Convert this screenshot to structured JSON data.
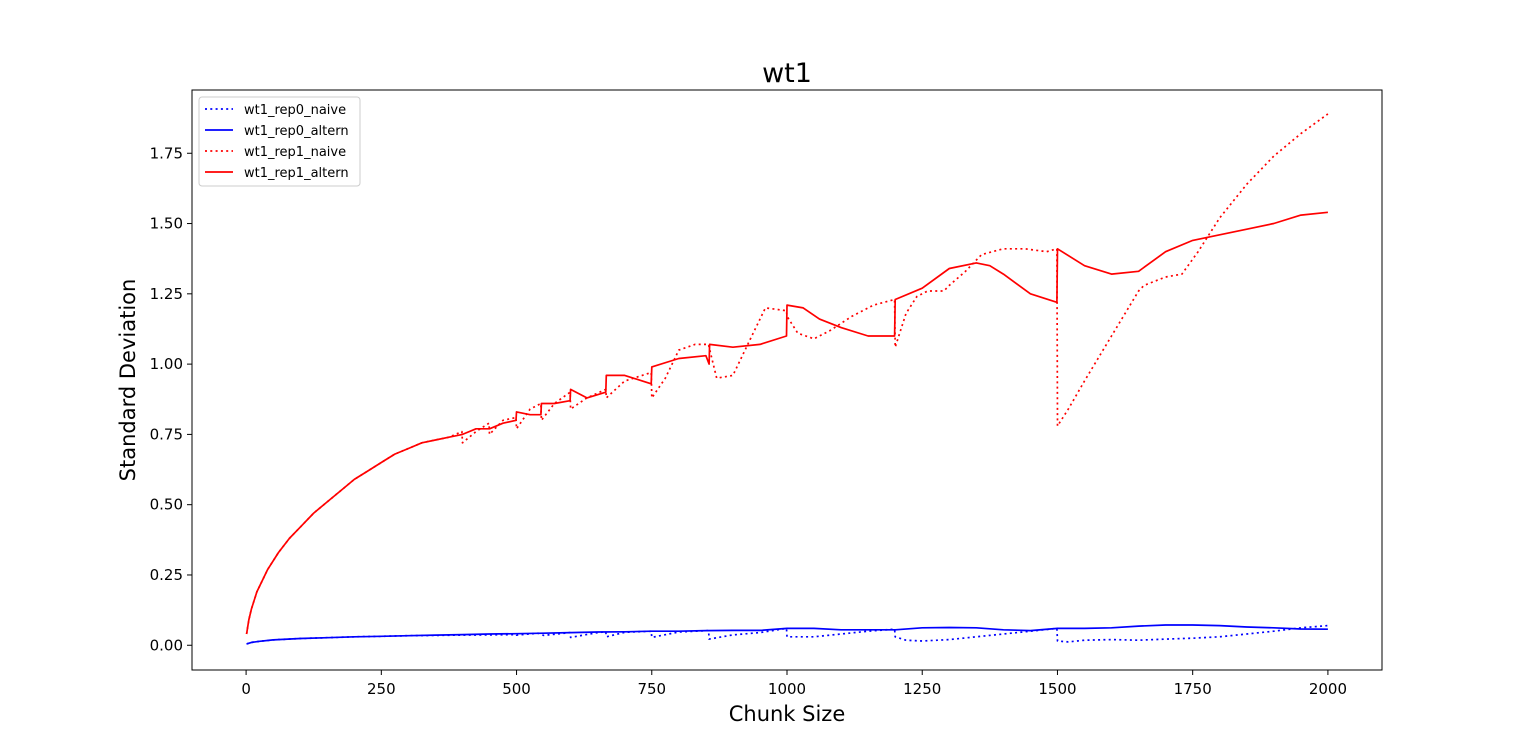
{
  "chart_data": {
    "type": "line",
    "title": "wt1",
    "xlabel": "Chunk Size",
    "ylabel": "Standard Deviation",
    "xlim": [
      -100,
      2100
    ],
    "ylim": [
      -0.088,
      1.975
    ],
    "xticks": [
      0,
      250,
      500,
      750,
      1000,
      1250,
      1500,
      1750,
      2000
    ],
    "xtick_labels": [
      "0",
      "250",
      "500",
      "750",
      "1000",
      "1250",
      "1500",
      "1750",
      "2000"
    ],
    "yticks": [
      0.0,
      0.25,
      0.5,
      0.75,
      1.0,
      1.25,
      1.5,
      1.75
    ],
    "ytick_labels": [
      "0.00",
      "0.25",
      "0.50",
      "0.75",
      "1.00",
      "1.25",
      "1.50",
      "1.75"
    ],
    "legend_position": "top-left",
    "series": [
      {
        "name": "wt1_rep0_naive",
        "color": "#0000ff",
        "style": "dotted",
        "x": [
          1,
          10,
          25,
          50,
          100,
          150,
          200,
          250,
          300,
          350,
          400,
          450,
          499,
          500,
          540,
          550,
          599,
          600,
          650,
          665,
          666,
          700,
          749,
          750,
          800,
          855,
          856,
          900,
          950,
          999,
          1000,
          1050,
          1100,
          1150,
          1199,
          1200,
          1220,
          1250,
          1300,
          1350,
          1400,
          1450,
          1499,
          1500,
          1520,
          1550,
          1600,
          1650,
          1700,
          1750,
          1800,
          1850,
          1900,
          1950,
          2000
        ],
        "values": [
          0.005,
          0.01,
          0.014,
          0.019,
          0.024,
          0.027,
          0.03,
          0.032,
          0.034,
          0.035,
          0.036,
          0.037,
          0.038,
          0.036,
          0.043,
          0.035,
          0.045,
          0.028,
          0.045,
          0.048,
          0.03,
          0.046,
          0.05,
          0.028,
          0.047,
          0.052,
          0.022,
          0.037,
          0.045,
          0.06,
          0.03,
          0.03,
          0.04,
          0.05,
          0.057,
          0.03,
          0.018,
          0.015,
          0.02,
          0.03,
          0.04,
          0.05,
          0.06,
          0.015,
          0.012,
          0.018,
          0.02,
          0.018,
          0.022,
          0.025,
          0.03,
          0.04,
          0.05,
          0.062,
          0.07
        ]
      },
      {
        "name": "wt1_rep0_altern",
        "color": "#0000ff",
        "style": "solid",
        "x": [
          1,
          10,
          25,
          50,
          100,
          150,
          200,
          250,
          300,
          350,
          400,
          450,
          500,
          550,
          600,
          650,
          700,
          750,
          800,
          850,
          900,
          950,
          1000,
          1050,
          1100,
          1150,
          1200,
          1250,
          1300,
          1350,
          1400,
          1450,
          1500,
          1550,
          1600,
          1650,
          1700,
          1750,
          1800,
          1850,
          1900,
          1950,
          2000
        ],
        "values": [
          0.005,
          0.01,
          0.014,
          0.019,
          0.024,
          0.027,
          0.03,
          0.032,
          0.034,
          0.036,
          0.038,
          0.04,
          0.041,
          0.043,
          0.045,
          0.047,
          0.048,
          0.05,
          0.05,
          0.052,
          0.053,
          0.053,
          0.06,
          0.06,
          0.055,
          0.055,
          0.055,
          0.062,
          0.063,
          0.062,
          0.055,
          0.052,
          0.06,
          0.06,
          0.062,
          0.068,
          0.072,
          0.072,
          0.07,
          0.065,
          0.062,
          0.058,
          0.057
        ]
      },
      {
        "name": "wt1_rep1_naive",
        "color": "#ff0000",
        "style": "dotted",
        "x": [
          1,
          5,
          10,
          20,
          40,
          60,
          80,
          100,
          125,
          150,
          175,
          200,
          225,
          250,
          275,
          300,
          325,
          350,
          375,
          399,
          400,
          425,
          449,
          450,
          475,
          499,
          500,
          525,
          545,
          546,
          570,
          599,
          600,
          630,
          665,
          666,
          700,
          749,
          750,
          775,
          800,
          830,
          855,
          856,
          870,
          900,
          930,
          960,
          999,
          1000,
          1020,
          1050,
          1080,
          1120,
          1160,
          1199,
          1200,
          1220,
          1240,
          1260,
          1290,
          1300,
          1330,
          1360,
          1400,
          1440,
          1480,
          1499,
          1500,
          1520,
          1550,
          1600,
          1650,
          1660,
          1700,
          1730,
          1760,
          1800,
          1850,
          1900,
          1950,
          2000
        ],
        "values": [
          0.04,
          0.09,
          0.13,
          0.19,
          0.27,
          0.33,
          0.38,
          0.42,
          0.47,
          0.51,
          0.55,
          0.59,
          0.62,
          0.65,
          0.68,
          0.7,
          0.72,
          0.73,
          0.74,
          0.76,
          0.72,
          0.76,
          0.79,
          0.75,
          0.8,
          0.81,
          0.77,
          0.84,
          0.86,
          0.8,
          0.86,
          0.9,
          0.84,
          0.88,
          0.91,
          0.88,
          0.94,
          0.97,
          0.88,
          0.95,
          1.05,
          1.07,
          1.07,
          1.06,
          0.95,
          0.96,
          1.08,
          1.2,
          1.19,
          1.17,
          1.11,
          1.09,
          1.12,
          1.17,
          1.21,
          1.23,
          1.06,
          1.18,
          1.24,
          1.26,
          1.26,
          1.28,
          1.33,
          1.39,
          1.41,
          1.41,
          1.4,
          1.41,
          0.78,
          0.84,
          0.94,
          1.1,
          1.26,
          1.28,
          1.31,
          1.32,
          1.4,
          1.52,
          1.64,
          1.74,
          1.82,
          1.89
        ]
      },
      {
        "name": "wt1_rep1_altern",
        "color": "#ff0000",
        "style": "solid",
        "x": [
          1,
          5,
          10,
          20,
          40,
          60,
          80,
          100,
          125,
          150,
          175,
          200,
          225,
          250,
          275,
          300,
          325,
          350,
          375,
          400,
          425,
          450,
          475,
          499,
          500,
          525,
          545,
          546,
          570,
          599,
          600,
          630,
          665,
          666,
          700,
          749,
          750,
          800,
          850,
          856,
          857,
          900,
          950,
          999,
          1000,
          1030,
          1060,
          1100,
          1150,
          1199,
          1200,
          1250,
          1300,
          1350,
          1375,
          1400,
          1450,
          1499,
          1500,
          1550,
          1600,
          1650,
          1700,
          1750,
          1800,
          1850,
          1900,
          1950,
          2000
        ],
        "values": [
          0.04,
          0.09,
          0.13,
          0.19,
          0.27,
          0.33,
          0.38,
          0.42,
          0.47,
          0.51,
          0.55,
          0.59,
          0.62,
          0.65,
          0.68,
          0.7,
          0.72,
          0.73,
          0.74,
          0.75,
          0.77,
          0.77,
          0.79,
          0.8,
          0.83,
          0.82,
          0.82,
          0.86,
          0.86,
          0.87,
          0.91,
          0.88,
          0.9,
          0.96,
          0.96,
          0.93,
          0.99,
          1.02,
          1.03,
          1.0,
          1.07,
          1.06,
          1.07,
          1.1,
          1.21,
          1.2,
          1.16,
          1.13,
          1.1,
          1.1,
          1.23,
          1.27,
          1.34,
          1.36,
          1.35,
          1.32,
          1.25,
          1.22,
          1.41,
          1.35,
          1.32,
          1.33,
          1.4,
          1.44,
          1.46,
          1.48,
          1.5,
          1.53,
          1.54
        ]
      }
    ]
  }
}
